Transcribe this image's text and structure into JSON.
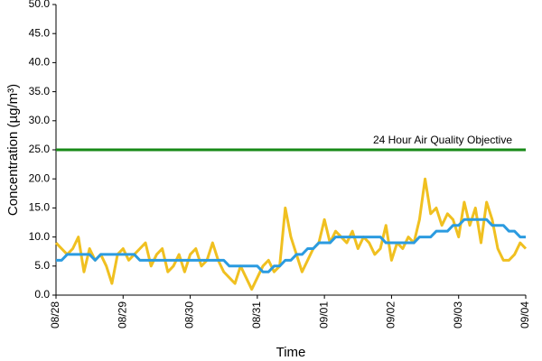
{
  "chart_data": {
    "type": "line",
    "y_label": "Concentration (µg/m³)",
    "x_label": "Time",
    "categories": [
      "08/28",
      null,
      null,
      null,
      null,
      null,
      null,
      null,
      null,
      null,
      null,
      null,
      "08/29",
      null,
      null,
      null,
      null,
      null,
      null,
      null,
      null,
      null,
      null,
      null,
      "08/30",
      null,
      null,
      null,
      null,
      null,
      null,
      null,
      null,
      null,
      null,
      null,
      "08/31",
      null,
      null,
      null,
      null,
      null,
      null,
      null,
      null,
      null,
      null,
      null,
      "09/01",
      null,
      null,
      null,
      null,
      null,
      null,
      null,
      null,
      null,
      null,
      null,
      "09/02",
      null,
      null,
      null,
      null,
      null,
      null,
      null,
      null,
      null,
      null,
      null,
      "09/03",
      null,
      null,
      null,
      null,
      null,
      null,
      null,
      null,
      null,
      null,
      null,
      "09/04"
    ],
    "series": [
      {
        "color": "#f0c020",
        "values": [
          9,
          8,
          7,
          8,
          10,
          4,
          8,
          6,
          7,
          5,
          2,
          7,
          8,
          6,
          7,
          8,
          9,
          5,
          7,
          8,
          4,
          5,
          7,
          4,
          7,
          8,
          5,
          6,
          9,
          6,
          4,
          3,
          2,
          5,
          3,
          1,
          3,
          5,
          6,
          4,
          5,
          15,
          10,
          7,
          4,
          6,
          8,
          9,
          13,
          9,
          11,
          10,
          9,
          11,
          8,
          10,
          9,
          7,
          8,
          12,
          6,
          9,
          8,
          10,
          9,
          13,
          20,
          14,
          15,
          12,
          14,
          13,
          10,
          16,
          12,
          15,
          9,
          16,
          13,
          8,
          6,
          6,
          7,
          9,
          8
        ]
      },
      {
        "color": "#2b9be0",
        "values": [
          6,
          6,
          7,
          7,
          7,
          7,
          7,
          6,
          7,
          7,
          7,
          7,
          7,
          7,
          7,
          6,
          6,
          6,
          6,
          6,
          6,
          6,
          6,
          6,
          6,
          6,
          6,
          6,
          6,
          6,
          6,
          5,
          5,
          5,
          5,
          5,
          5,
          4,
          4,
          5,
          5,
          6,
          6,
          7,
          7,
          8,
          8,
          9,
          9,
          9,
          10,
          10,
          10,
          10,
          10,
          10,
          10,
          10,
          10,
          9,
          9,
          9,
          9,
          9,
          9,
          10,
          10,
          10,
          11,
          11,
          11,
          12,
          12,
          13,
          13,
          13,
          13,
          13,
          12,
          12,
          12,
          11,
          11,
          10,
          10
        ]
      }
    ],
    "objective": {
      "label": "24 Hour Air Quality Objective",
      "value": 25,
      "color": "#178a17"
    },
    "ylim": [
      0,
      50
    ],
    "yticks": [
      {
        "value": 0,
        "label": "0.0"
      },
      {
        "value": 5,
        "label": "5.0"
      },
      {
        "value": 10,
        "label": "10.0"
      },
      {
        "value": 15,
        "label": "15.0"
      },
      {
        "value": 20,
        "label": "20.0"
      },
      {
        "value": 25,
        "label": "25.0"
      },
      {
        "value": 30,
        "label": "30.0"
      },
      {
        "value": 35,
        "label": "35.0"
      },
      {
        "value": 40,
        "label": "40.0"
      },
      {
        "value": 45,
        "label": "45.0"
      },
      {
        "value": 50,
        "label": "50.0"
      }
    ],
    "grid": false
  }
}
